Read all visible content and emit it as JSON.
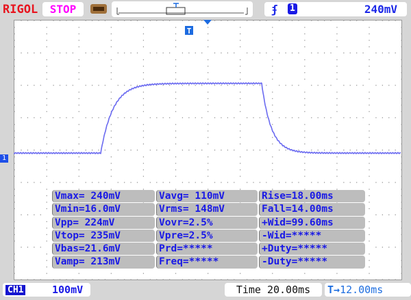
{
  "header": {
    "brand": "RIGOL",
    "run_state": "STOP",
    "trigger_slope_icon": "rising-edge-icon",
    "trigger_source": "1",
    "trigger_level": "240mV",
    "trigger_marker": "T"
  },
  "colors": {
    "trace": "#6a6af0",
    "brand": "#e8141e",
    "stop": "#ff00ff",
    "text": "#1a1ae6"
  },
  "measurements": [
    [
      "Vmax= 240mV",
      "Vavg= 110mV",
      "Rise=18.00ms"
    ],
    [
      "Vmin=16.0mV",
      "Vrms= 148mV",
      "Fall=14.00ms"
    ],
    [
      "Vpp= 224mV",
      "Vovr=2.5%",
      "+Wid=99.60ms"
    ],
    [
      "Vtop= 235mV",
      "Vpre=2.5%",
      "-Wid=*****"
    ],
    [
      "Vbas=21.6mV",
      "Prd=*****",
      "+Duty=*****"
    ],
    [
      "Vamp= 213mV",
      "Freq=*****",
      "-Duty=*****"
    ]
  ],
  "footer": {
    "channel": "CH1",
    "ch1_scale": "100mV",
    "time_label": "Time",
    "time_scale": "20.00ms",
    "trigger_offset": "12.00ms",
    "ch1_marker": "1"
  }
}
